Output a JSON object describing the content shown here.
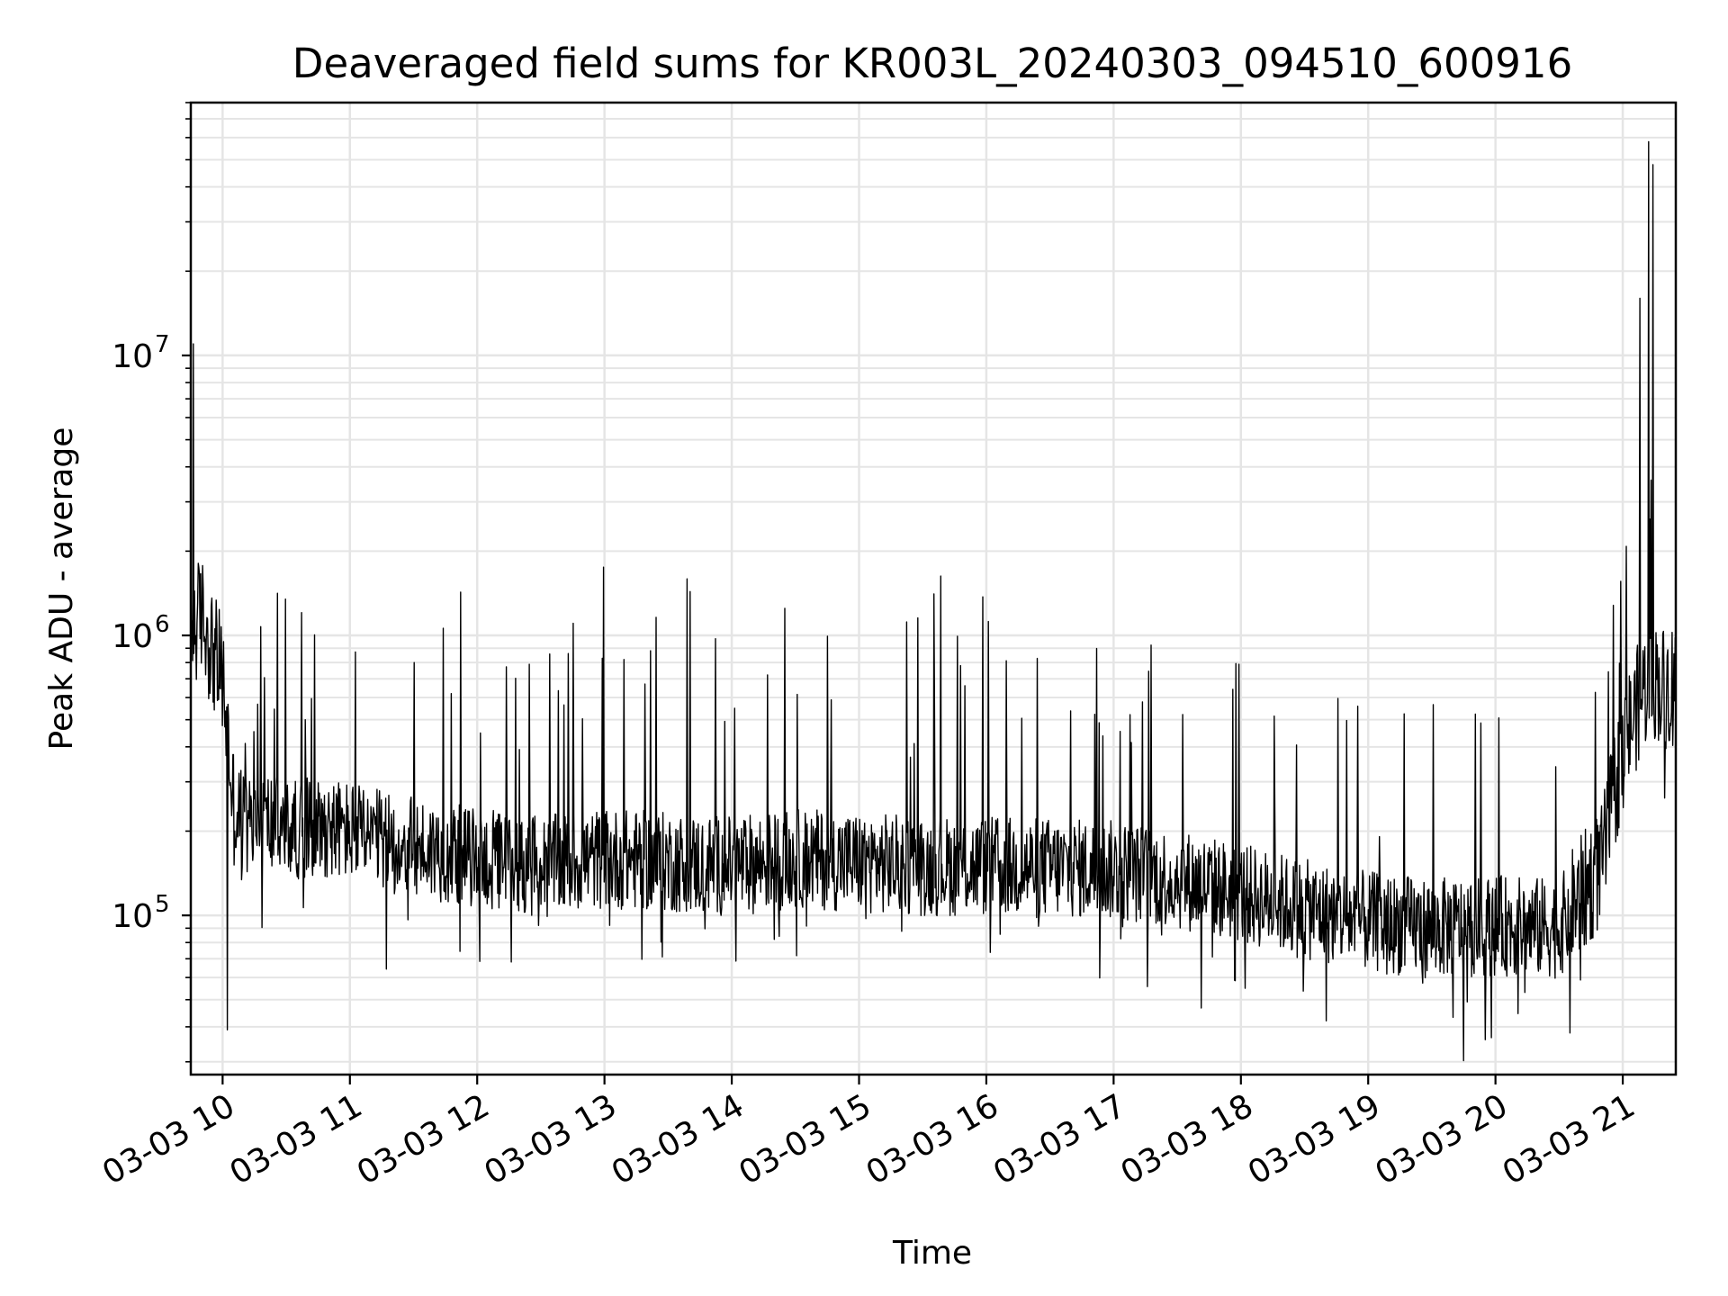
{
  "chart_data": {
    "type": "line",
    "title": "Deaveraged field sums for KR003L_20240303_094510_600916",
    "xlabel": "Time",
    "ylabel": "Peak ADU - average",
    "x_start": "2024-03-03 09:45",
    "x_end": "2024-03-03 21:25",
    "xlim": [
      "2024-03-03 09:45",
      "2024-03-03 21:25"
    ],
    "x_ticks": [
      "03-03 10",
      "03-03 11",
      "03-03 12",
      "03-03 13",
      "03-03 14",
      "03-03 15",
      "03-03 16",
      "03-03 17",
      "03-03 18",
      "03-03 19",
      "03-03 20",
      "03-03 21"
    ],
    "y_scale": "log",
    "ylim": [
      27000,
      80000000
    ],
    "y_ticks": [
      {
        "base": "10",
        "exp": "5",
        "value": 100000
      },
      {
        "base": "10",
        "exp": "6",
        "value": 1000000
      },
      {
        "base": "10",
        "exp": "7",
        "value": 10000000
      }
    ],
    "grid": true,
    "line_color": "#000000",
    "grid_color": "#e5e5e5",
    "series": [
      {
        "x": [
          "2024-03-03 09:45",
          "2024-03-03 09:50",
          "2024-03-03 09:55",
          "2024-03-03 10:00",
          "2024-03-03 10:05",
          "2024-03-03 10:10",
          "2024-03-03 10:20",
          "2024-03-03 10:30",
          "2024-03-03 10:45",
          "2024-03-03 11:00",
          "2024-03-03 11:20",
          "2024-03-03 11:40",
          "2024-03-03 12:00",
          "2024-03-03 12:30",
          "2024-03-03 13:00",
          "2024-03-03 13:30",
          "2024-03-03 14:00",
          "2024-03-03 14:30",
          "2024-03-03 15:00",
          "2024-03-03 15:30",
          "2024-03-03 16:00",
          "2024-03-03 16:30",
          "2024-03-03 17:00",
          "2024-03-03 17:30",
          "2024-03-03 18:00",
          "2024-03-03 18:30",
          "2024-03-03 19:00",
          "2024-03-03 19:30",
          "2024-03-03 20:00",
          "2024-03-03 20:30",
          "2024-03-03 20:50",
          "2024-03-03 21:00",
          "2024-03-03 21:10",
          "2024-03-03 21:15",
          "2024-03-03 21:20",
          "2024-03-03 21:25"
        ],
        "y": [
          1000000,
          1200000,
          900000,
          700000,
          250000,
          200000,
          220000,
          200000,
          210000,
          200000,
          180000,
          170000,
          160000,
          150000,
          160000,
          155000,
          150000,
          160000,
          155000,
          150000,
          150000,
          148000,
          145000,
          135000,
          120000,
          105000,
          95000,
          90000,
          92000,
          90000,
          150000,
          400000,
          650000,
          700000,
          650000,
          700000
        ],
        "peaks": [
          {
            "x": "2024-03-03 09:46",
            "y": 11000000
          },
          {
            "x": "2024-03-03 10:02",
            "y": 39000
          },
          {
            "x": "2024-03-03 14:25",
            "y": 1250000
          },
          {
            "x": "2024-03-03 18:40",
            "y": 42000
          },
          {
            "x": "2024-03-03 20:35",
            "y": 38000
          },
          {
            "x": "2024-03-03 21:08",
            "y": 16000000
          },
          {
            "x": "2024-03-03 21:12",
            "y": 58000000
          },
          {
            "x": "2024-03-03 21:14",
            "y": 48000000
          }
        ]
      }
    ]
  }
}
